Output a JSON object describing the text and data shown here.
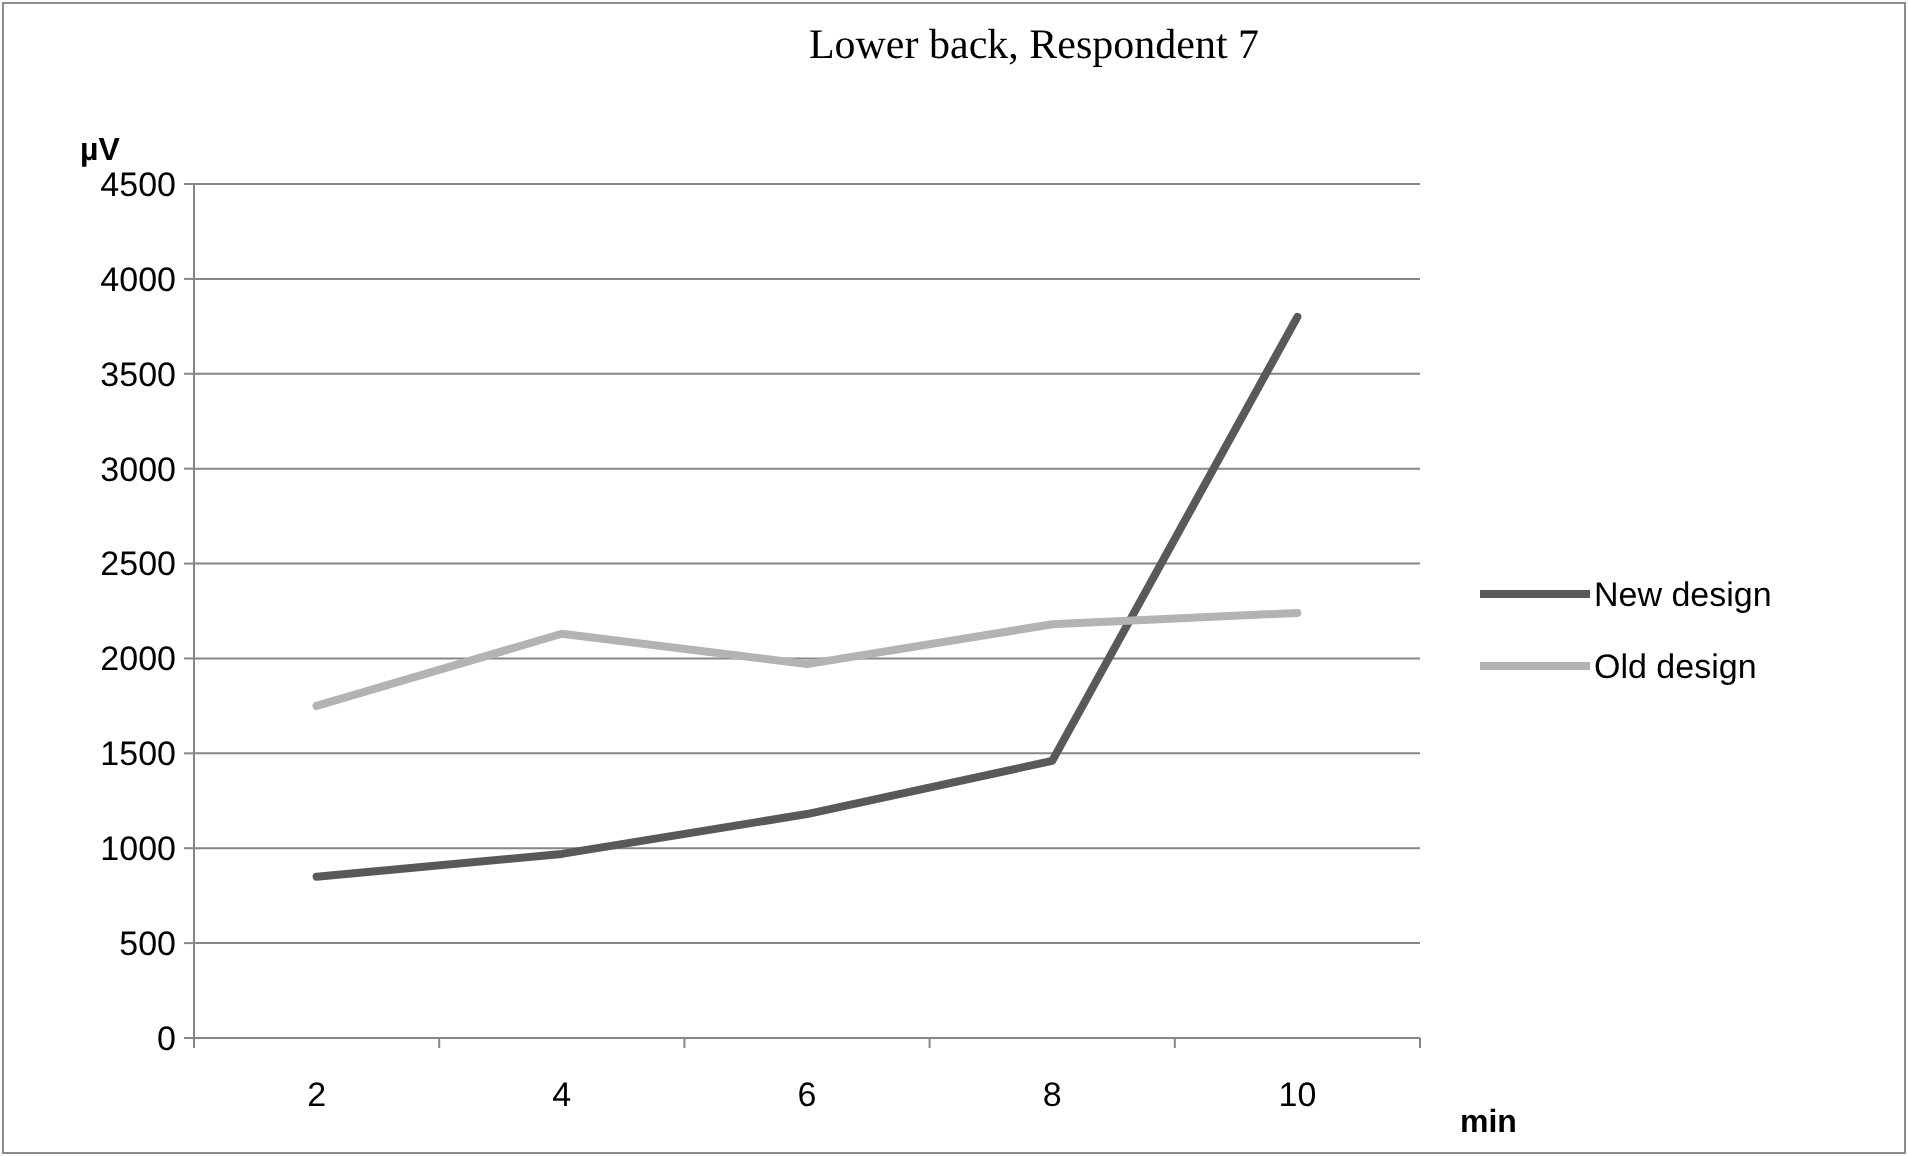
{
  "chart_data": {
    "type": "line",
    "title": "Lower back, Respondent 7",
    "ylabel": "µV",
    "xlabel": "min",
    "categories": [
      "2",
      "4",
      "6",
      "8",
      "10"
    ],
    "series": [
      {
        "name": "New design",
        "color": "#595959",
        "values": [
          850,
          970,
          1180,
          1460,
          3800
        ]
      },
      {
        "name": "Old design",
        "color": "#b3b3b3",
        "values": [
          1750,
          2130,
          1970,
          2180,
          2240
        ]
      }
    ],
    "ylim": [
      0,
      4500
    ],
    "yticks": [
      0,
      500,
      1000,
      1500,
      2000,
      2500,
      3000,
      3500,
      4000,
      4500
    ],
    "grid": "y",
    "legend": "right",
    "marker": "none",
    "line_style": "solid"
  }
}
